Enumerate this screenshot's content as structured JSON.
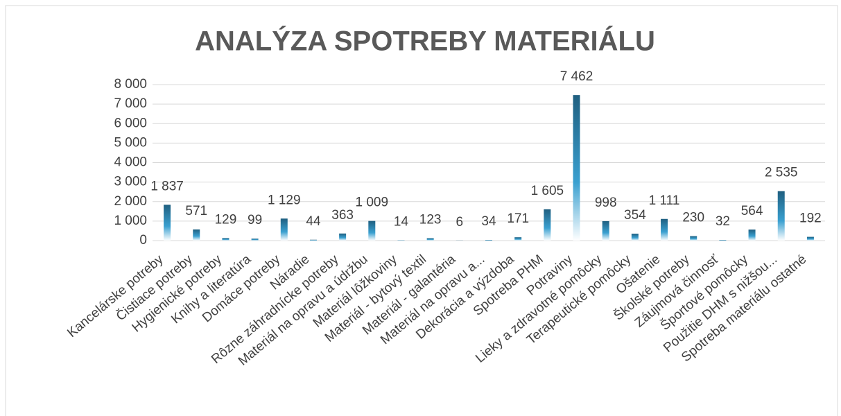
{
  "chart_data": {
    "type": "bar",
    "title": "ANALÝZA SPOTREBY MATERIÁLU",
    "categories": [
      "Kancelárske potreby",
      "Čistiace potreby",
      "Hygienické potreby",
      "Knihy a literatúra",
      "Domáce potreby",
      "Náradie",
      "Rôzne záhradnícke potreby",
      "Materiál na opravu a údržbu",
      "Materiál lôžkoviny",
      "Materiál - bytový textil",
      "Materiál - galantéria",
      "Materiál na opravu a...",
      "Dekorácia a výzdoba",
      "Spotreba PHM",
      "Potraviny",
      "Lieky a zdravotné pomôcky",
      "Terapeutické pomôcky",
      "Ošatenie",
      "Školské potreby",
      "Záujmová činnosť",
      "Športové pomôcky",
      "Použitie DHM s nižšou...",
      "Spotreba materiálu ostatné"
    ],
    "values": [
      1837,
      571,
      129,
      99,
      1129,
      44,
      363,
      1009,
      14,
      123,
      6,
      34,
      171,
      1605,
      7462,
      998,
      354,
      1111,
      230,
      32,
      564,
      2535,
      192
    ],
    "value_labels": [
      "1 837",
      "571",
      "129",
      "99",
      "1 129",
      "44",
      "363",
      "1 009",
      "14",
      "123",
      "6",
      "34",
      "171",
      "1 605",
      "7 462",
      "998",
      "354",
      "1 111",
      "230",
      "32",
      "564",
      "2 535",
      "192"
    ],
    "color": "#1f5f80",
    "ylim": [
      0,
      8000
    ],
    "yticks": [
      {
        "value": 0,
        "label": "0"
      },
      {
        "value": 1000,
        "label": "1 000"
      },
      {
        "value": 2000,
        "label": "2 000"
      },
      {
        "value": 3000,
        "label": "3 000"
      },
      {
        "value": 4000,
        "label": "4 000"
      },
      {
        "value": 5000,
        "label": "5 000"
      },
      {
        "value": 6000,
        "label": "6 000"
      },
      {
        "value": 7000,
        "label": "7 000"
      },
      {
        "value": 8000,
        "label": "8 000"
      }
    ],
    "grid": true
  }
}
